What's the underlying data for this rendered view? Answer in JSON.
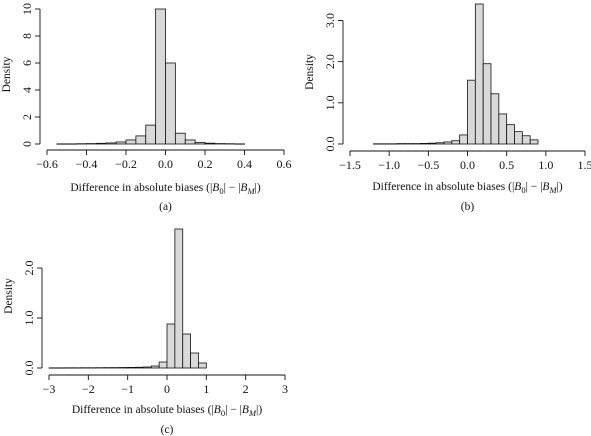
{
  "chart_data": [
    {
      "type": "bar",
      "panel_label": "(a)",
      "ylabel": "Density",
      "xlabel_prefix": "Difference in absolute biases (|",
      "xlabel_b0": "B",
      "xlabel_b0_sub": "0",
      "xlabel_mid": "| − |",
      "xlabel_bm": "B",
      "xlabel_bm_sub": "M",
      "xlabel_suffix": "|)",
      "xlim": [
        -0.6,
        0.6
      ],
      "ylim": [
        0,
        10
      ],
      "xticks": [
        -0.6,
        -0.4,
        -0.2,
        0.0,
        0.2,
        0.4,
        0.6
      ],
      "xtick_labels": [
        "−0.6",
        "−0.4",
        "−0.2",
        "0.0",
        "0.2",
        "0.4",
        "0.6"
      ],
      "yticks": [
        0,
        2,
        4,
        6,
        8,
        10
      ],
      "ytick_labels": [
        "0",
        "2",
        "4",
        "6",
        "8",
        "10"
      ],
      "bin_width": 0.05,
      "bins": [
        {
          "x0": -0.55,
          "value": 0.01
        },
        {
          "x0": -0.5,
          "value": 0.01
        },
        {
          "x0": -0.45,
          "value": 0.02
        },
        {
          "x0": -0.4,
          "value": 0.03
        },
        {
          "x0": -0.35,
          "value": 0.05
        },
        {
          "x0": -0.3,
          "value": 0.08
        },
        {
          "x0": -0.25,
          "value": 0.15
        },
        {
          "x0": -0.2,
          "value": 0.3
        },
        {
          "x0": -0.15,
          "value": 0.6
        },
        {
          "x0": -0.1,
          "value": 1.4
        },
        {
          "x0": -0.05,
          "value": 10.0
        },
        {
          "x0": 0.0,
          "value": 6.0
        },
        {
          "x0": 0.05,
          "value": 0.8
        },
        {
          "x0": 0.1,
          "value": 0.3
        },
        {
          "x0": 0.15,
          "value": 0.12
        },
        {
          "x0": 0.2,
          "value": 0.06
        },
        {
          "x0": 0.25,
          "value": 0.03
        },
        {
          "x0": 0.3,
          "value": 0.02
        },
        {
          "x0": 0.35,
          "value": 0.01
        }
      ]
    },
    {
      "type": "bar",
      "panel_label": "(b)",
      "ylabel": "Density",
      "xlabel_prefix": "Difference in absolute biases (|",
      "xlabel_b0": "B",
      "xlabel_b0_sub": "0",
      "xlabel_mid": "| − |",
      "xlabel_bm": "B",
      "xlabel_bm_sub": "M",
      "xlabel_suffix": "|)",
      "xlim": [
        -1.5,
        1.5
      ],
      "ylim": [
        0,
        3.4
      ],
      "xticks": [
        -1.5,
        -1.0,
        -0.5,
        0.0,
        0.5,
        1.0,
        1.5
      ],
      "xtick_labels": [
        "−1.5",
        "−1.0",
        "−0.5",
        "0.0",
        "0.5",
        "1.0",
        "1.5"
      ],
      "yticks": [
        0.0,
        1.0,
        2.0,
        3.0
      ],
      "ytick_labels": [
        "0.0",
        "1.0",
        "2.0",
        "3.0"
      ],
      "bin_width": 0.1,
      "bins": [
        {
          "x0": -1.2,
          "value": 0.005
        },
        {
          "x0": -1.1,
          "value": 0.005
        },
        {
          "x0": -1.0,
          "value": 0.005
        },
        {
          "x0": -0.9,
          "value": 0.01
        },
        {
          "x0": -0.8,
          "value": 0.01
        },
        {
          "x0": -0.7,
          "value": 0.01
        },
        {
          "x0": -0.6,
          "value": 0.015
        },
        {
          "x0": -0.5,
          "value": 0.02
        },
        {
          "x0": -0.4,
          "value": 0.03
        },
        {
          "x0": -0.3,
          "value": 0.05
        },
        {
          "x0": -0.2,
          "value": 0.08
        },
        {
          "x0": -0.1,
          "value": 0.22
        },
        {
          "x0": 0.0,
          "value": 1.55
        },
        {
          "x0": 0.1,
          "value": 3.4
        },
        {
          "x0": 0.2,
          "value": 1.95
        },
        {
          "x0": 0.3,
          "value": 1.22
        },
        {
          "x0": 0.4,
          "value": 0.73
        },
        {
          "x0": 0.5,
          "value": 0.47
        },
        {
          "x0": 0.6,
          "value": 0.3
        },
        {
          "x0": 0.7,
          "value": 0.2
        },
        {
          "x0": 0.8,
          "value": 0.1
        }
      ]
    },
    {
      "type": "bar",
      "panel_label": "(c)",
      "ylabel": "Density",
      "xlabel_prefix": "Difference in absolute biases (|",
      "xlabel_b0": "B",
      "xlabel_b0_sub": "0",
      "xlabel_mid": "| − |",
      "xlabel_bm": "B",
      "xlabel_bm_sub": "M",
      "xlabel_suffix": "|)",
      "xlim": [
        -3,
        3
      ],
      "ylim": [
        0,
        2.8
      ],
      "xticks": [
        -3,
        -2,
        -1,
        0,
        1,
        2,
        3
      ],
      "xtick_labels": [
        "−3",
        "−2",
        "−1",
        "0",
        "1",
        "2",
        "3"
      ],
      "yticks": [
        0.0,
        1.0,
        2.0
      ],
      "ytick_labels": [
        "0.0",
        "1.0",
        "2.0"
      ],
      "bin_width": 0.2,
      "bins": [
        {
          "x0": -3.0,
          "value": 0.003
        },
        {
          "x0": -2.8,
          "value": 0.003
        },
        {
          "x0": -2.6,
          "value": 0.004
        },
        {
          "x0": -2.4,
          "value": 0.004
        },
        {
          "x0": -2.2,
          "value": 0.005
        },
        {
          "x0": -2.0,
          "value": 0.005
        },
        {
          "x0": -1.8,
          "value": 0.006
        },
        {
          "x0": -1.6,
          "value": 0.007
        },
        {
          "x0": -1.4,
          "value": 0.008
        },
        {
          "x0": -1.2,
          "value": 0.01
        },
        {
          "x0": -1.0,
          "value": 0.012
        },
        {
          "x0": -0.8,
          "value": 0.015
        },
        {
          "x0": -0.6,
          "value": 0.02
        },
        {
          "x0": -0.4,
          "value": 0.04
        },
        {
          "x0": -0.2,
          "value": 0.12
        },
        {
          "x0": 0.0,
          "value": 0.88
        },
        {
          "x0": 0.2,
          "value": 2.78
        },
        {
          "x0": 0.4,
          "value": 0.68
        },
        {
          "x0": 0.6,
          "value": 0.3
        },
        {
          "x0": 0.8,
          "value": 0.1
        }
      ]
    }
  ]
}
